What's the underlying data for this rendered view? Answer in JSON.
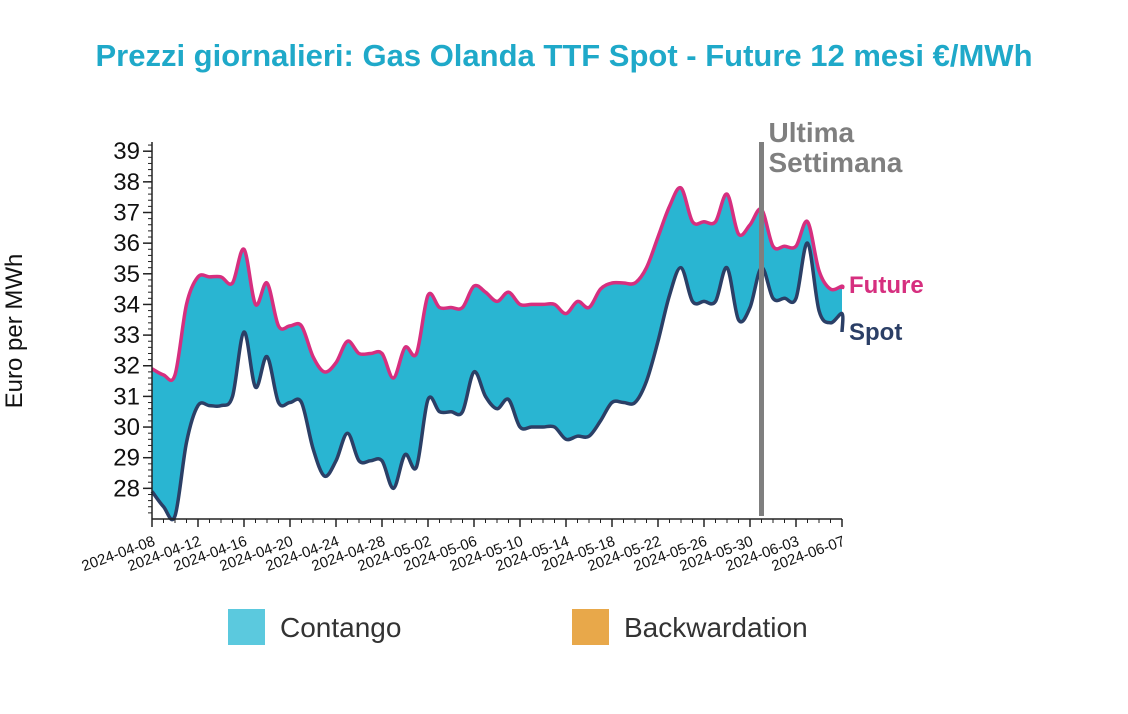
{
  "chart_data": {
    "type": "area",
    "title": "Prezzi giornalieri: Gas Olanda TTF Spot - Future 12 mesi €/MWh",
    "ylabel": "Euro per MWh",
    "xlabel": "",
    "ylim": [
      27,
      39.3
    ],
    "yticks": [
      28,
      29,
      30,
      31,
      32,
      33,
      34,
      35,
      36,
      37,
      38,
      39
    ],
    "xlim": [
      "2024-04-08",
      "2024-06-07"
    ],
    "xticks": [
      "2024-04-08",
      "2024-04-12",
      "2024-04-16",
      "2024-04-20",
      "2024-04-24",
      "2024-04-28",
      "2024-05-02",
      "2024-05-06",
      "2024-05-10",
      "2024-05-14",
      "2024-05-18",
      "2024-05-22",
      "2024-05-26",
      "2024-05-30",
      "2024-06-03",
      "2024-06-07"
    ],
    "series": [
      {
        "name": "Future",
        "color": "#d62f7f",
        "points": [
          [
            "2024-04-08",
            31.9
          ],
          [
            "2024-04-09",
            31.7
          ],
          [
            "2024-04-10",
            31.7
          ],
          [
            "2024-04-11",
            34.0
          ],
          [
            "2024-04-12",
            34.9
          ],
          [
            "2024-04-13",
            34.9
          ],
          [
            "2024-04-14",
            34.9
          ],
          [
            "2024-04-15",
            34.7
          ],
          [
            "2024-04-16",
            35.8
          ],
          [
            "2024-04-17",
            34.0
          ],
          [
            "2024-04-18",
            34.7
          ],
          [
            "2024-04-19",
            33.3
          ],
          [
            "2024-04-20",
            33.3
          ],
          [
            "2024-04-21",
            33.3
          ],
          [
            "2024-04-22",
            32.3
          ],
          [
            "2024-04-23",
            31.8
          ],
          [
            "2024-04-24",
            32.1
          ],
          [
            "2024-04-25",
            32.8
          ],
          [
            "2024-04-26",
            32.4
          ],
          [
            "2024-04-27",
            32.4
          ],
          [
            "2024-04-28",
            32.4
          ],
          [
            "2024-04-29",
            31.6
          ],
          [
            "2024-04-30",
            32.6
          ],
          [
            "2024-05-01",
            32.4
          ],
          [
            "2024-05-02",
            34.3
          ],
          [
            "2024-05-03",
            33.9
          ],
          [
            "2024-05-04",
            33.9
          ],
          [
            "2024-05-05",
            33.9
          ],
          [
            "2024-05-06",
            34.6
          ],
          [
            "2024-05-07",
            34.4
          ],
          [
            "2024-05-08",
            34.1
          ],
          [
            "2024-05-09",
            34.4
          ],
          [
            "2024-05-10",
            34.0
          ],
          [
            "2024-05-11",
            34.0
          ],
          [
            "2024-05-12",
            34.0
          ],
          [
            "2024-05-13",
            34.0
          ],
          [
            "2024-05-14",
            33.7
          ],
          [
            "2024-05-15",
            34.1
          ],
          [
            "2024-05-16",
            33.9
          ],
          [
            "2024-05-17",
            34.5
          ],
          [
            "2024-05-18",
            34.7
          ],
          [
            "2024-05-19",
            34.7
          ],
          [
            "2024-05-20",
            34.7
          ],
          [
            "2024-05-21",
            35.2
          ],
          [
            "2024-05-22",
            36.2
          ],
          [
            "2024-05-23",
            37.2
          ],
          [
            "2024-05-24",
            37.8
          ],
          [
            "2024-05-25",
            36.7
          ],
          [
            "2024-05-26",
            36.7
          ],
          [
            "2024-05-27",
            36.7
          ],
          [
            "2024-05-28",
            37.6
          ],
          [
            "2024-05-29",
            36.3
          ],
          [
            "2024-05-30",
            36.6
          ],
          [
            "2024-05-31",
            37.1
          ],
          [
            "2024-06-01",
            35.9
          ],
          [
            "2024-06-02",
            35.9
          ],
          [
            "2024-06-03",
            35.9
          ],
          [
            "2024-06-04",
            36.7
          ],
          [
            "2024-06-05",
            35.1
          ],
          [
            "2024-06-06",
            34.5
          ],
          [
            "2024-06-07",
            34.6
          ],
          [
            "2024-06-08",
            34.5
          ]
        ]
      },
      {
        "name": "Spot",
        "color": "#2b3f66",
        "points": [
          [
            "2024-04-08",
            27.9
          ],
          [
            "2024-04-09",
            27.4
          ],
          [
            "2024-04-10",
            27.1
          ],
          [
            "2024-04-11",
            29.5
          ],
          [
            "2024-04-12",
            30.7
          ],
          [
            "2024-04-13",
            30.7
          ],
          [
            "2024-04-14",
            30.7
          ],
          [
            "2024-04-15",
            31.0
          ],
          [
            "2024-04-16",
            33.1
          ],
          [
            "2024-04-17",
            31.3
          ],
          [
            "2024-04-18",
            32.3
          ],
          [
            "2024-04-19",
            30.8
          ],
          [
            "2024-04-20",
            30.8
          ],
          [
            "2024-04-21",
            30.8
          ],
          [
            "2024-04-22",
            29.3
          ],
          [
            "2024-04-23",
            28.4
          ],
          [
            "2024-04-24",
            28.9
          ],
          [
            "2024-04-25",
            29.8
          ],
          [
            "2024-04-26",
            28.9
          ],
          [
            "2024-04-27",
            28.9
          ],
          [
            "2024-04-28",
            28.9
          ],
          [
            "2024-04-29",
            28.0
          ],
          [
            "2024-04-30",
            29.1
          ],
          [
            "2024-05-01",
            28.7
          ],
          [
            "2024-05-02",
            30.9
          ],
          [
            "2024-05-03",
            30.5
          ],
          [
            "2024-05-04",
            30.5
          ],
          [
            "2024-05-05",
            30.5
          ],
          [
            "2024-05-06",
            31.8
          ],
          [
            "2024-05-07",
            31.0
          ],
          [
            "2024-05-08",
            30.6
          ],
          [
            "2024-05-09",
            30.9
          ],
          [
            "2024-05-10",
            30.0
          ],
          [
            "2024-05-11",
            30.0
          ],
          [
            "2024-05-12",
            30.0
          ],
          [
            "2024-05-13",
            30.0
          ],
          [
            "2024-05-14",
            29.6
          ],
          [
            "2024-05-15",
            29.7
          ],
          [
            "2024-05-16",
            29.7
          ],
          [
            "2024-05-17",
            30.2
          ],
          [
            "2024-05-18",
            30.8
          ],
          [
            "2024-05-19",
            30.8
          ],
          [
            "2024-05-20",
            30.8
          ],
          [
            "2024-05-21",
            31.5
          ],
          [
            "2024-05-22",
            32.8
          ],
          [
            "2024-05-23",
            34.3
          ],
          [
            "2024-05-24",
            35.2
          ],
          [
            "2024-05-25",
            34.1
          ],
          [
            "2024-05-26",
            34.1
          ],
          [
            "2024-05-27",
            34.1
          ],
          [
            "2024-05-28",
            35.2
          ],
          [
            "2024-05-29",
            33.5
          ],
          [
            "2024-05-30",
            33.9
          ],
          [
            "2024-05-31",
            35.2
          ],
          [
            "2024-06-01",
            34.2
          ],
          [
            "2024-06-02",
            34.2
          ],
          [
            "2024-06-03",
            34.2
          ],
          [
            "2024-06-04",
            36.0
          ],
          [
            "2024-06-05",
            33.8
          ],
          [
            "2024-06-06",
            33.4
          ],
          [
            "2024-06-07",
            33.7
          ],
          [
            "2024-06-08",
            33.1
          ]
        ]
      }
    ],
    "fill_colors": {
      "contango": "#29b5d2",
      "backwardation": "#e8a84a"
    },
    "legend": [
      {
        "label": "Contango",
        "color": "#5bc9de"
      },
      {
        "label": "Backwardation",
        "color": "#e8a84a"
      }
    ],
    "legend_placement": "bottom",
    "annotation": {
      "text_line1": "Ultima",
      "text_line2": "Settimana",
      "x": "2024-05-31",
      "color": "#7f7f7f"
    },
    "grid": false
  }
}
